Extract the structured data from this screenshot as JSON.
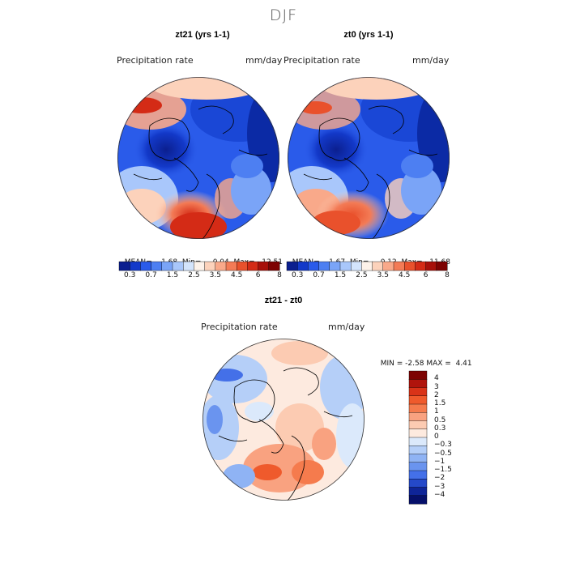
{
  "figure": {
    "title": "DJF",
    "panels": [
      {
        "id": "left",
        "title": "zt21 (yrs 1-1)",
        "field": "Precipitation rate",
        "units": "mm/day",
        "stats": {
          "mean_label": "MEAN=",
          "mean": "1.68",
          "min_label": "Min=",
          "min": "0.04",
          "max_label": "Max=",
          "max": "12.51"
        }
      },
      {
        "id": "right",
        "title": "zt0 (yrs 1-1)",
        "field": "Precipitation rate",
        "units": "mm/day",
        "stats": {
          "mean_label": "MEAN=",
          "mean": "1.67",
          "min_label": "Min=",
          "min": "0.12",
          "max_label": "Max=",
          "max": "11.68"
        }
      }
    ],
    "diff": {
      "title": "zt21 - zt0",
      "field": "Precipitation rate",
      "units": "mm/day",
      "stats": {
        "min_label": "MIN =",
        "min": "-2.58",
        "max_label": "MAX =",
        "max": "4.41"
      }
    }
  },
  "colorbar_abs": {
    "ticks": [
      "0.3",
      "0.7",
      "1.5",
      "2.5",
      "3.5",
      "4.5",
      "6",
      "8"
    ],
    "colors": [
      "#0b1f8f",
      "#1339c9",
      "#2a5bea",
      "#4d7ff2",
      "#7aa4f7",
      "#a9c7fb",
      "#d3e4fc",
      "#fdf2ea",
      "#fcd2bb",
      "#f9a98a",
      "#f37b56",
      "#e9512c",
      "#d42b16",
      "#a7100a",
      "#7d0303"
    ]
  },
  "colorbar_diff": {
    "ticks": [
      "4",
      "3",
      "2",
      "1.5",
      "1",
      "0.5",
      "0.3",
      "0",
      "−0.3",
      "−0.5",
      "−1",
      "−1.5",
      "−2",
      "−3",
      "−4"
    ],
    "colors": [
      "#7d0303",
      "#b0140c",
      "#d93318",
      "#ef5a2c",
      "#f57b4d",
      "#f9a280",
      "#fccbb2",
      "#fdeadf",
      "#dbe9fb",
      "#b5cff8",
      "#8fb3f4",
      "#6a94ef",
      "#4470e8",
      "#2549c9",
      "#0f2598",
      "#06106a"
    ]
  }
}
